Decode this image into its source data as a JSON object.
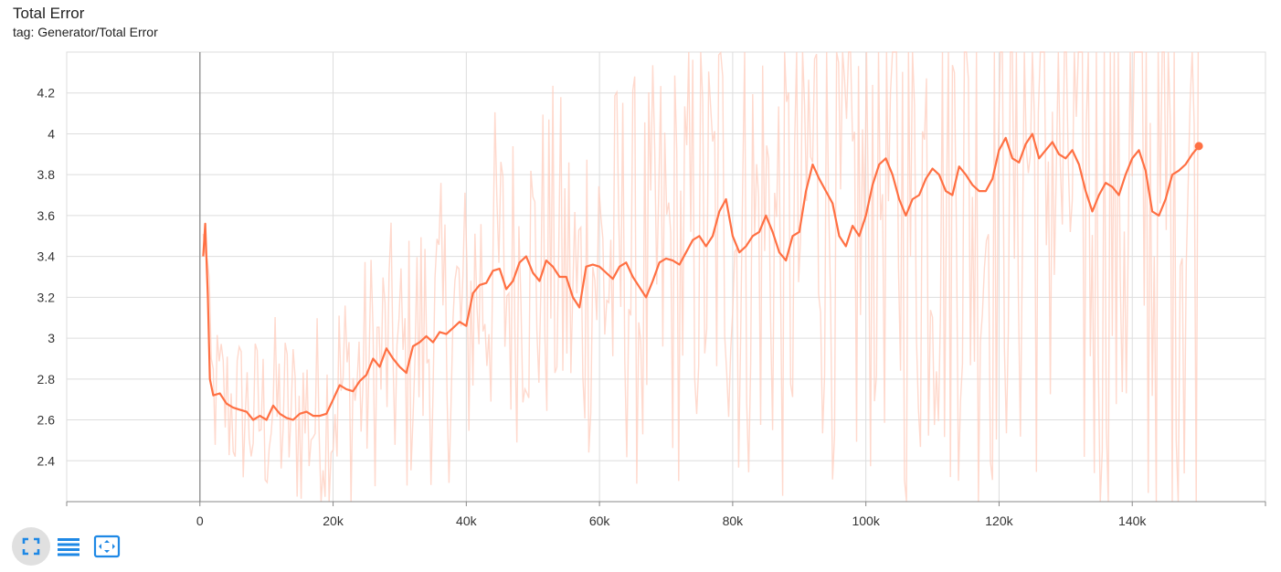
{
  "header": {
    "title": "Total Error",
    "subtitle": "tag: Generator/Total Error"
  },
  "toolbar": {
    "buttons": [
      {
        "name": "fit-domain-button",
        "icon": "fullscreen-icon",
        "active": true
      },
      {
        "name": "toggle-y-log-button",
        "icon": "list-icon",
        "active": false
      },
      {
        "name": "reset-zoom-button",
        "icon": "fit-screen-icon",
        "active": false
      }
    ]
  },
  "colors": {
    "smoothed": "#ff7043",
    "raw": "#ffccbc",
    "grid": "#dddddd",
    "zero_axis": "#999999"
  },
  "chart_data": {
    "type": "line",
    "title": "Total Error",
    "xlim": [
      -20000,
      160000
    ],
    "ylim": [
      2.2,
      4.4
    ],
    "x_ticks": [
      0,
      20000,
      40000,
      60000,
      80000,
      100000,
      120000,
      140000
    ],
    "x_tick_labels": [
      "0",
      "20k",
      "40k",
      "60k",
      "80k",
      "100k",
      "120k",
      "140k"
    ],
    "y_ticks": [
      2.4,
      2.6,
      2.8,
      3.0,
      3.2,
      3.4,
      3.6,
      3.8,
      4.0,
      4.2
    ],
    "y_tick_labels": [
      "2.4",
      "2.6",
      "2.8",
      "3",
      "3.2",
      "3.4",
      "3.6",
      "3.8",
      "4",
      "4.2"
    ],
    "grid": true,
    "series": [
      {
        "role": "smoothed",
        "x": [
          500,
          800,
          1200,
          1500,
          2000,
          3000,
          4000,
          5000,
          6000,
          7000,
          8000,
          9000,
          10000,
          11000,
          12000,
          13000,
          14000,
          15000,
          16000,
          17000,
          18000,
          19000,
          20000,
          21000,
          22000,
          23000,
          24000,
          25000,
          26000,
          27000,
          28000,
          29000,
          30000,
          31000,
          32000,
          33000,
          34000,
          35000,
          36000,
          37000,
          38000,
          39000,
          40000,
          41000,
          42000,
          43000,
          44000,
          45000,
          46000,
          47000,
          48000,
          49000,
          50000,
          51000,
          52000,
          53000,
          54000,
          55000,
          56000,
          57000,
          58000,
          59000,
          60000,
          61000,
          62000,
          63000,
          64000,
          65000,
          66000,
          67000,
          68000,
          69000,
          70000,
          71000,
          72000,
          73000,
          74000,
          75000,
          76000,
          77000,
          78000,
          79000,
          80000,
          81000,
          82000,
          83000,
          84000,
          85000,
          86000,
          87000,
          88000,
          89000,
          90000,
          91000,
          92000,
          93000,
          94000,
          95000,
          96000,
          97000,
          98000,
          99000,
          100000,
          101000,
          102000,
          103000,
          104000,
          105000,
          106000,
          107000,
          108000,
          109000,
          110000,
          111000,
          112000,
          113000,
          114000,
          115000,
          116000,
          117000,
          118000,
          119000,
          120000,
          121000,
          122000,
          123000,
          124000,
          125000,
          126000,
          127000,
          128000,
          129000,
          130000,
          131000,
          132000,
          133000,
          134000,
          135000,
          136000,
          137000,
          138000,
          139000,
          140000,
          141000,
          142000,
          143000,
          144000,
          145000,
          146000,
          147000,
          148000,
          149000,
          150000
        ],
        "y": [
          3.4,
          3.56,
          3.2,
          2.8,
          2.72,
          2.73,
          2.68,
          2.66,
          2.65,
          2.64,
          2.6,
          2.62,
          2.6,
          2.67,
          2.63,
          2.61,
          2.6,
          2.63,
          2.64,
          2.62,
          2.62,
          2.63,
          2.7,
          2.77,
          2.75,
          2.74,
          2.79,
          2.82,
          2.9,
          2.86,
          2.95,
          2.9,
          2.86,
          2.83,
          2.96,
          2.98,
          3.01,
          2.98,
          3.03,
          3.02,
          3.05,
          3.08,
          3.06,
          3.22,
          3.26,
          3.27,
          3.33,
          3.34,
          3.24,
          3.28,
          3.37,
          3.4,
          3.32,
          3.28,
          3.38,
          3.35,
          3.3,
          3.3,
          3.2,
          3.15,
          3.35,
          3.36,
          3.35,
          3.32,
          3.29,
          3.35,
          3.37,
          3.3,
          3.25,
          3.2,
          3.28,
          3.37,
          3.39,
          3.38,
          3.36,
          3.42,
          3.48,
          3.5,
          3.45,
          3.5,
          3.62,
          3.68,
          3.5,
          3.42,
          3.45,
          3.5,
          3.52,
          3.6,
          3.52,
          3.42,
          3.38,
          3.5,
          3.52,
          3.72,
          3.85,
          3.78,
          3.72,
          3.66,
          3.5,
          3.45,
          3.55,
          3.5,
          3.6,
          3.75,
          3.85,
          3.88,
          3.8,
          3.68,
          3.6,
          3.68,
          3.7,
          3.78,
          3.83,
          3.8,
          3.72,
          3.7,
          3.84,
          3.8,
          3.75,
          3.72,
          3.72,
          3.78,
          3.92,
          3.98,
          3.88,
          3.86,
          3.95,
          4.0,
          3.88,
          3.92,
          3.96,
          3.9,
          3.88,
          3.92,
          3.85,
          3.72,
          3.62,
          3.7,
          3.76,
          3.74,
          3.7,
          3.8,
          3.88,
          3.92,
          3.82,
          3.62,
          3.6,
          3.68,
          3.8,
          3.82,
          3.85,
          3.9,
          3.94
        ]
      }
    ],
    "last_point": {
      "x": 150000,
      "y": 3.94
    }
  }
}
